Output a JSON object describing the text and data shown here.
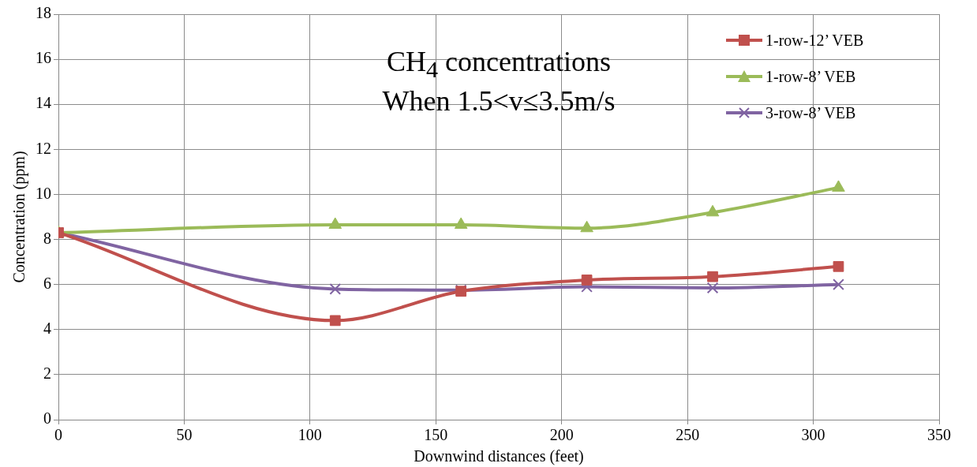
{
  "chart_data": {
    "type": "line",
    "title": "CH$_{4}$ concentrations",
    "subtitle": "When 1.5<v≤3.5m/s",
    "xlabel": "Downwind distances (feet)",
    "ylabel": "Concentration (ppm)",
    "x": [
      0,
      110,
      160,
      210,
      260,
      310
    ],
    "series": [
      {
        "name": "1-row-12’ VEB",
        "color": "#c0504d",
        "marker": "square",
        "values": [
          8.3,
          4.4,
          5.7,
          6.2,
          6.35,
          6.8
        ]
      },
      {
        "name": "1-row-8’ VEB",
        "color": "#9bbb59",
        "marker": "triangle",
        "values": [
          8.3,
          8.65,
          8.65,
          8.5,
          9.2,
          10.3
        ]
      },
      {
        "name": "3-row-8’ VEB",
        "color": "#8064a2",
        "marker": "cross",
        "values": [
          8.3,
          5.8,
          5.75,
          5.9,
          5.85,
          6.0
        ]
      }
    ],
    "xlim": [
      0,
      350
    ],
    "xticks": [
      0,
      50,
      100,
      150,
      200,
      250,
      300,
      350
    ],
    "ylim": [
      0,
      18
    ],
    "yticks": [
      0,
      2,
      4,
      6,
      8,
      10,
      12,
      14,
      16,
      18
    ],
    "grid": true,
    "legend": "top right",
    "line_style": "solid"
  }
}
